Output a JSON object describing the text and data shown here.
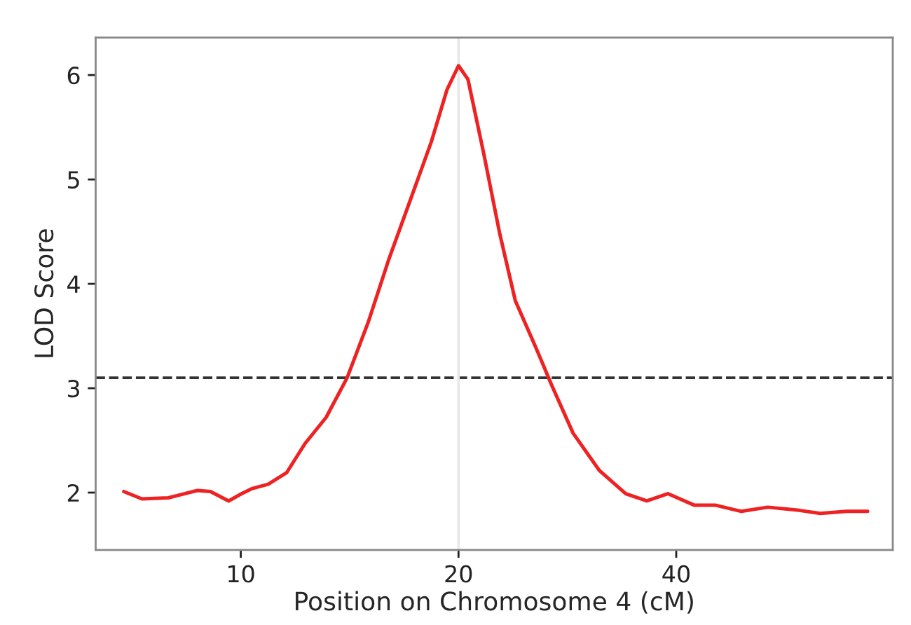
{
  "chart_data": {
    "type": "line",
    "xlabel": "Position on Chromosome 4 (cM)",
    "ylabel": "LOD Score",
    "log": "x",
    "xlim": [
      6.3,
      79.7
    ],
    "ylim": [
      1.45,
      6.36
    ],
    "xticks": [
      10,
      20,
      40
    ],
    "yticks": [
      2,
      3,
      4,
      5,
      6
    ],
    "grid": false,
    "legend": false,
    "line_style": "solid",
    "marker": "none",
    "ref_lines": [
      {
        "axis": "y",
        "value": 3.1,
        "color": "#333333",
        "line_style": "dashed"
      },
      {
        "axis": "x",
        "value": 20,
        "color": "#e8e8e8",
        "line_style": "solid"
      }
    ],
    "series": [
      {
        "color": "#ee2222",
        "x": [
          6.89,
          7.3,
          7.94,
          8.71,
          9.08,
          9.62,
          10.03,
          10.38,
          10.91,
          11.57,
          12.27,
          13.12,
          14.03,
          15.0,
          16.03,
          17.15,
          18.34,
          19.28,
          20.0,
          20.61,
          21.67,
          22.79,
          23.96,
          25.62,
          26.94,
          28.8,
          31.33,
          34.06,
          36.42,
          38.94,
          42.34,
          45.28,
          49.22,
          53.53,
          59.17,
          63.27,
          68.81,
          73.56
        ],
        "values": [
          2.01,
          1.94,
          1.95,
          2.02,
          2.01,
          1.92,
          1.99,
          2.04,
          2.08,
          2.19,
          2.47,
          2.72,
          3.1,
          3.63,
          4.24,
          4.8,
          5.36,
          5.86,
          6.09,
          5.96,
          5.25,
          4.49,
          3.84,
          3.38,
          3.02,
          2.57,
          2.21,
          1.99,
          1.92,
          1.99,
          1.88,
          1.88,
          1.82,
          1.86,
          1.83,
          1.8,
          1.82,
          1.82
        ]
      }
    ]
  }
}
